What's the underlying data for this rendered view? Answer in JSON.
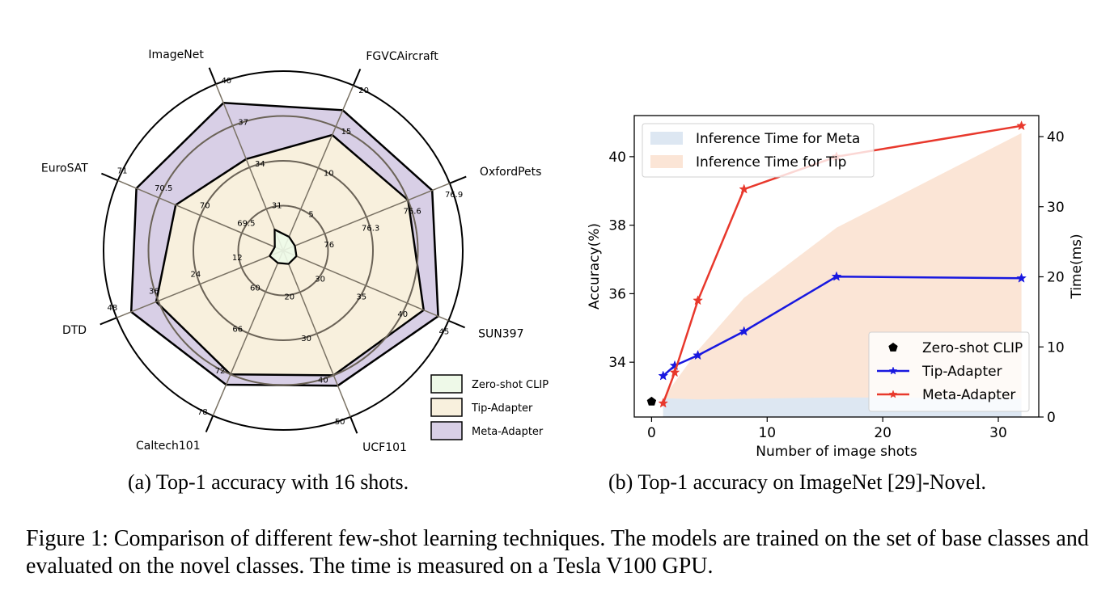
{
  "chart_data": [
    {
      "type": "radar",
      "axes": [
        "ImageNet",
        "FGVCAircraft",
        "OxfordPets",
        "SUN397",
        "UCF101",
        "Caltech101",
        "DTD",
        "EuroSAT"
      ],
      "ticks": [
        [
          "31",
          "34",
          "37",
          "40"
        ],
        [
          "5",
          "10",
          "15",
          "20"
        ],
        [
          "76",
          "76.3",
          "76.6",
          "76.9"
        ],
        [
          "30",
          "35",
          "40",
          "45"
        ],
        [
          "20",
          "30",
          "40",
          "50"
        ],
        [
          "60",
          "66",
          "72",
          "78"
        ],
        [
          "12",
          "24",
          "36",
          "48"
        ],
        [
          "69.5",
          "70",
          "70.5",
          "71"
        ]
      ],
      "series": [
        {
          "name": "Zero-shot CLIP",
          "values": [
            0.5,
            0.33,
            0.28,
            0.32,
            0.32,
            0.3,
            0.32,
            0.2
          ],
          "color": "#eef9e8"
        },
        {
          "name": "Tip-Adapter",
          "values": [
            2.2,
            2.8,
            3.0,
            3.4,
            3.0,
            3.0,
            3.05,
            2.6
          ],
          "color": "#f8f0dd"
        },
        {
          "name": "Meta-Adapter",
          "values": [
            3.55,
            3.4,
            3.58,
            3.75,
            3.25,
            3.25,
            3.65,
            3.55
          ],
          "color": "#d8cfe6"
        }
      ],
      "legend": "bottom-right"
    },
    {
      "type": "line",
      "xlabel": "Number of image shots",
      "ylabel": "Accuracy(%)",
      "ylabel_right": "Time(ms)",
      "xlim": [
        -1.5,
        33.5
      ],
      "ylim": [
        32.4,
        41.2
      ],
      "ylim_right": [
        0,
        43
      ],
      "xticks": [
        0,
        10,
        20,
        30
      ],
      "yticks": [
        34,
        36,
        38,
        40
      ],
      "yticks_right": [
        0,
        10,
        20,
        30,
        40
      ],
      "series": [
        {
          "name": "Zero-shot CLIP",
          "x": [
            0
          ],
          "y": [
            32.85
          ],
          "color": "#000000",
          "marker": "pentagon"
        },
        {
          "name": "Tip-Adapter",
          "x": [
            1,
            2,
            4,
            8,
            16,
            32
          ],
          "y": [
            33.6,
            33.9,
            34.2,
            34.9,
            36.5,
            36.45
          ],
          "color": "#1818e0",
          "marker": "star"
        },
        {
          "name": "Meta-Adapter",
          "x": [
            1,
            2,
            4,
            8,
            16,
            32
          ],
          "y": [
            32.8,
            33.7,
            35.8,
            39.05,
            40.0,
            40.9
          ],
          "color": "#e8382c",
          "marker": "star"
        }
      ],
      "areas": [
        {
          "name": "Inference Time for Meta",
          "x": [
            1,
            4,
            8,
            16,
            32
          ],
          "y": [
            2.7,
            2.5,
            2.6,
            2.8,
            2.7
          ],
          "color": "#dde7f2"
        },
        {
          "name": "Inference Time for Tip",
          "x": [
            1,
            4,
            8,
            16,
            32
          ],
          "y": [
            2.7,
            9.5,
            17.0,
            27.0,
            40.5
          ],
          "color": "#fbe5d6"
        }
      ]
    }
  ],
  "captions": {
    "a": "(a)  Top-1 accuracy with 16 shots.",
    "b": "(b)  Top-1 accuracy on ImageNet [29]-Novel.",
    "figure": "Figure 1: Comparison of different few-shot learning techniques. The models are trained on the set of base classes and evaluated on the novel classes. The time is measured on a Tesla V100 GPU."
  }
}
